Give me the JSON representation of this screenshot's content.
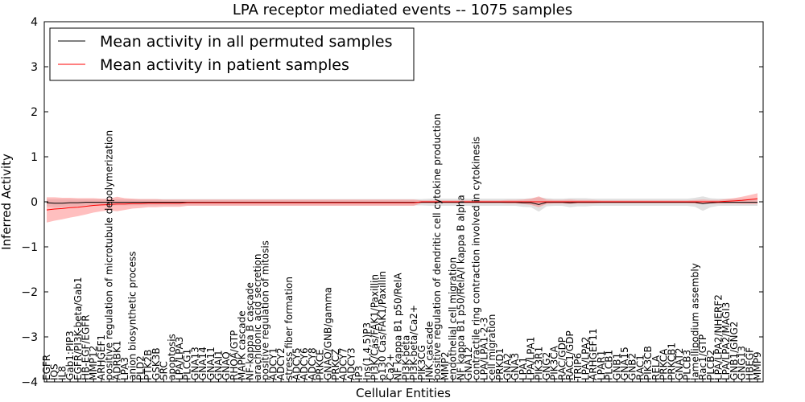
{
  "chart_data": {
    "type": "line",
    "title": "LPA receptor mediated events -- 1075 samples",
    "xlabel": "Cellular Entities",
    "ylabel": "Inferred Activity",
    "ylim": [
      -4,
      4
    ],
    "yticks": [
      "−4",
      "−3",
      "−2",
      "−1",
      "0",
      "1",
      "2",
      "3",
      "4"
    ],
    "ytick_values": [
      -4,
      -3,
      -2,
      -1,
      0,
      1,
      2,
      3,
      4
    ],
    "grid": false,
    "legend_position": "top-left",
    "colors": {
      "permuted": "#000000",
      "patient": "#ff0000",
      "permuted_band": "#c8c8c8",
      "patient_band": "#ff8080"
    },
    "categories": [
      "EGFR",
      "IQS",
      "IL8",
      "Gab1:PIP3",
      "EGFR/PI3K-beta/Gab1",
      "HB-EGF/EGFR",
      "MMP12",
      "ARHGEF1",
      "positive regulation of microtubule depolymerization",
      "ADRBK1",
      "LPA3",
      "anion biosynthetic process",
      "PLD2",
      "PTK2B",
      "GSK3B",
      "SRC",
      "apoptosis",
      "LPA/LPA3",
      "PLCG1",
      "GNA13",
      "GNA14",
      "GNA11",
      "GNAI1",
      "GNAQ",
      "RHOA/GTP",
      "MAPK cascade",
      "NF-kappa B cascade",
      "arachidonic acid secretion",
      "positive regulation of mitosis",
      "ADCY1",
      "ADCY2",
      "stress fiber formation",
      "ADCY5",
      "ADCY6",
      "ADCY8",
      "PRKCE",
      "GNAO/GNB/gamma",
      "PRKCZ",
      "ADCY7",
      "ADCY3",
      "IP3",
      "Ins(1,4,5)P3",
      "PI3K/Cas/FAK1/Paxillin",
      "p130 Cas/FAK1/Paxillin",
      "Ca2+",
      "NF kappa B1 p50/RelA",
      "PI3K-beta",
      "PI3K-beta/Ca2+",
      "PIK3CG",
      "JNK cascade",
      "positive regulation of dendritic cell cytokine production",
      "MMP2",
      "endothelial cell migration",
      "NF kappa B1 p50/RelA/I kappa B alpha",
      "GNA12",
      "contractile ring contraction involved in cytokinesis",
      "LPA/LPA1-2-3",
      "cell migration",
      "PRKD1",
      "GNA2",
      "GNA3",
      "LPA1",
      "LPA/LPA1",
      "PIK3R1",
      "GNG2",
      "PIK3CA",
      "RAC/GDP",
      "RAC1/GDP",
      "TRIP6",
      "LPA/LPA2",
      "ARHGEF11",
      "LPAR1",
      "PLCB1",
      "GNB1",
      "GNA15",
      "GNB2",
      "RAC1",
      "PIK3CB",
      "RELA",
      "PRKCA",
      "PRKCB1",
      "GNAT2",
      "PLCB3",
      "lamellipodium assembly",
      "Rac1/GTP",
      "PLCB2",
      "LPA/LPA2/NHERF2",
      "LPA/LPA2/MAGI3",
      "GNB1/GNG2",
      "GNG13",
      "HBEGF",
      "MMP9"
    ],
    "series": [
      {
        "name": "Mean activity in all permuted samples",
        "values": [
          -0.02,
          -0.03,
          -0.03,
          -0.02,
          -0.02,
          -0.01,
          -0.01,
          -0.01,
          -0.01,
          -0.01,
          -0.01,
          -0.01,
          -0.01,
          -0.01,
          -0.01,
          -0.01,
          -0.01,
          -0.01,
          -0.01,
          -0.01,
          -0.01,
          -0.01,
          -0.01,
          -0.01,
          -0.01,
          -0.01,
          -0.01,
          -0.01,
          -0.01,
          -0.01,
          -0.01,
          -0.01,
          -0.01,
          -0.01,
          -0.01,
          -0.01,
          -0.01,
          -0.01,
          -0.01,
          -0.01,
          -0.01,
          -0.01,
          -0.01,
          -0.01,
          -0.01,
          -0.01,
          -0.01,
          -0.01,
          -0.01,
          -0.01,
          -0.01,
          -0.01,
          -0.01,
          -0.01,
          -0.01,
          -0.01,
          -0.01,
          -0.01,
          -0.01,
          -0.01,
          -0.01,
          -0.02,
          -0.02,
          -0.06,
          -0.01,
          -0.01,
          -0.01,
          -0.02,
          -0.01,
          -0.01,
          -0.01,
          -0.01,
          -0.01,
          -0.01,
          -0.01,
          -0.01,
          -0.01,
          -0.01,
          -0.01,
          -0.01,
          -0.01,
          -0.01,
          -0.01,
          -0.01,
          -0.04,
          -0.02,
          -0.01,
          -0.01,
          -0.01,
          -0.01,
          -0.01,
          -0.01
        ],
        "band": [
          0.08,
          0.09,
          0.09,
          0.08,
          0.08,
          0.07,
          0.07,
          0.07,
          0.07,
          0.07,
          0.07,
          0.07,
          0.07,
          0.07,
          0.07,
          0.07,
          0.07,
          0.07,
          0.07,
          0.07,
          0.07,
          0.07,
          0.07,
          0.07,
          0.07,
          0.07,
          0.07,
          0.07,
          0.07,
          0.07,
          0.07,
          0.07,
          0.07,
          0.07,
          0.07,
          0.07,
          0.07,
          0.07,
          0.07,
          0.07,
          0.07,
          0.07,
          0.07,
          0.07,
          0.07,
          0.07,
          0.07,
          0.07,
          0.07,
          0.08,
          0.08,
          0.08,
          0.08,
          0.08,
          0.08,
          0.08,
          0.08,
          0.08,
          0.08,
          0.08,
          0.08,
          0.09,
          0.1,
          0.16,
          0.09,
          0.08,
          0.08,
          0.1,
          0.09,
          0.09,
          0.08,
          0.08,
          0.08,
          0.08,
          0.08,
          0.08,
          0.08,
          0.08,
          0.08,
          0.08,
          0.08,
          0.08,
          0.08,
          0.1,
          0.16,
          0.1,
          0.08,
          0.08,
          0.08,
          0.08,
          0.08,
          0.08
        ]
      },
      {
        "name": "Mean activity in patient samples",
        "values": [
          -0.18,
          -0.16,
          -0.15,
          -0.13,
          -0.12,
          -0.1,
          -0.08,
          -0.07,
          -0.06,
          -0.05,
          -0.05,
          -0.04,
          -0.04,
          -0.03,
          -0.03,
          -0.03,
          -0.03,
          -0.03,
          -0.02,
          -0.02,
          -0.02,
          -0.02,
          -0.02,
          -0.02,
          -0.02,
          -0.02,
          -0.02,
          -0.02,
          -0.02,
          -0.02,
          -0.02,
          -0.02,
          -0.02,
          -0.02,
          -0.02,
          -0.02,
          -0.02,
          -0.02,
          -0.02,
          -0.02,
          -0.02,
          -0.02,
          -0.02,
          -0.02,
          -0.02,
          -0.02,
          -0.02,
          -0.02,
          0.0,
          0.0,
          0.0,
          0.0,
          0.0,
          0.0,
          0.0,
          0.0,
          0.0,
          0.0,
          0.0,
          0.0,
          0.0,
          0.0,
          0.0,
          0.0,
          0.0,
          0.0,
          0.0,
          0.0,
          0.0,
          0.0,
          0.0,
          0.0,
          0.0,
          0.0,
          0.0,
          0.0,
          0.0,
          0.0,
          0.0,
          0.0,
          0.0,
          0.0,
          0.0,
          0.0,
          0.0,
          0.0,
          0.0,
          0.01,
          0.02,
          0.03,
          0.05,
          0.07
        ],
        "band": [
          0.28,
          0.26,
          0.24,
          0.22,
          0.2,
          0.18,
          0.16,
          0.14,
          0.13,
          0.16,
          0.13,
          0.11,
          0.1,
          0.09,
          0.09,
          0.08,
          0.08,
          0.08,
          0.07,
          0.07,
          0.07,
          0.07,
          0.07,
          0.07,
          0.07,
          0.07,
          0.07,
          0.07,
          0.07,
          0.07,
          0.07,
          0.07,
          0.07,
          0.07,
          0.07,
          0.07,
          0.07,
          0.07,
          0.07,
          0.07,
          0.07,
          0.07,
          0.07,
          0.07,
          0.07,
          0.07,
          0.07,
          0.07,
          0.03,
          0.03,
          0.03,
          0.03,
          0.03,
          0.03,
          0.03,
          0.03,
          0.03,
          0.03,
          0.03,
          0.04,
          0.04,
          0.05,
          0.07,
          0.12,
          0.05,
          0.04,
          0.04,
          0.05,
          0.04,
          0.04,
          0.04,
          0.03,
          0.03,
          0.03,
          0.03,
          0.03,
          0.03,
          0.03,
          0.03,
          0.03,
          0.03,
          0.03,
          0.03,
          0.04,
          0.05,
          0.04,
          0.04,
          0.05,
          0.06,
          0.08,
          0.1,
          0.12
        ]
      }
    ]
  }
}
